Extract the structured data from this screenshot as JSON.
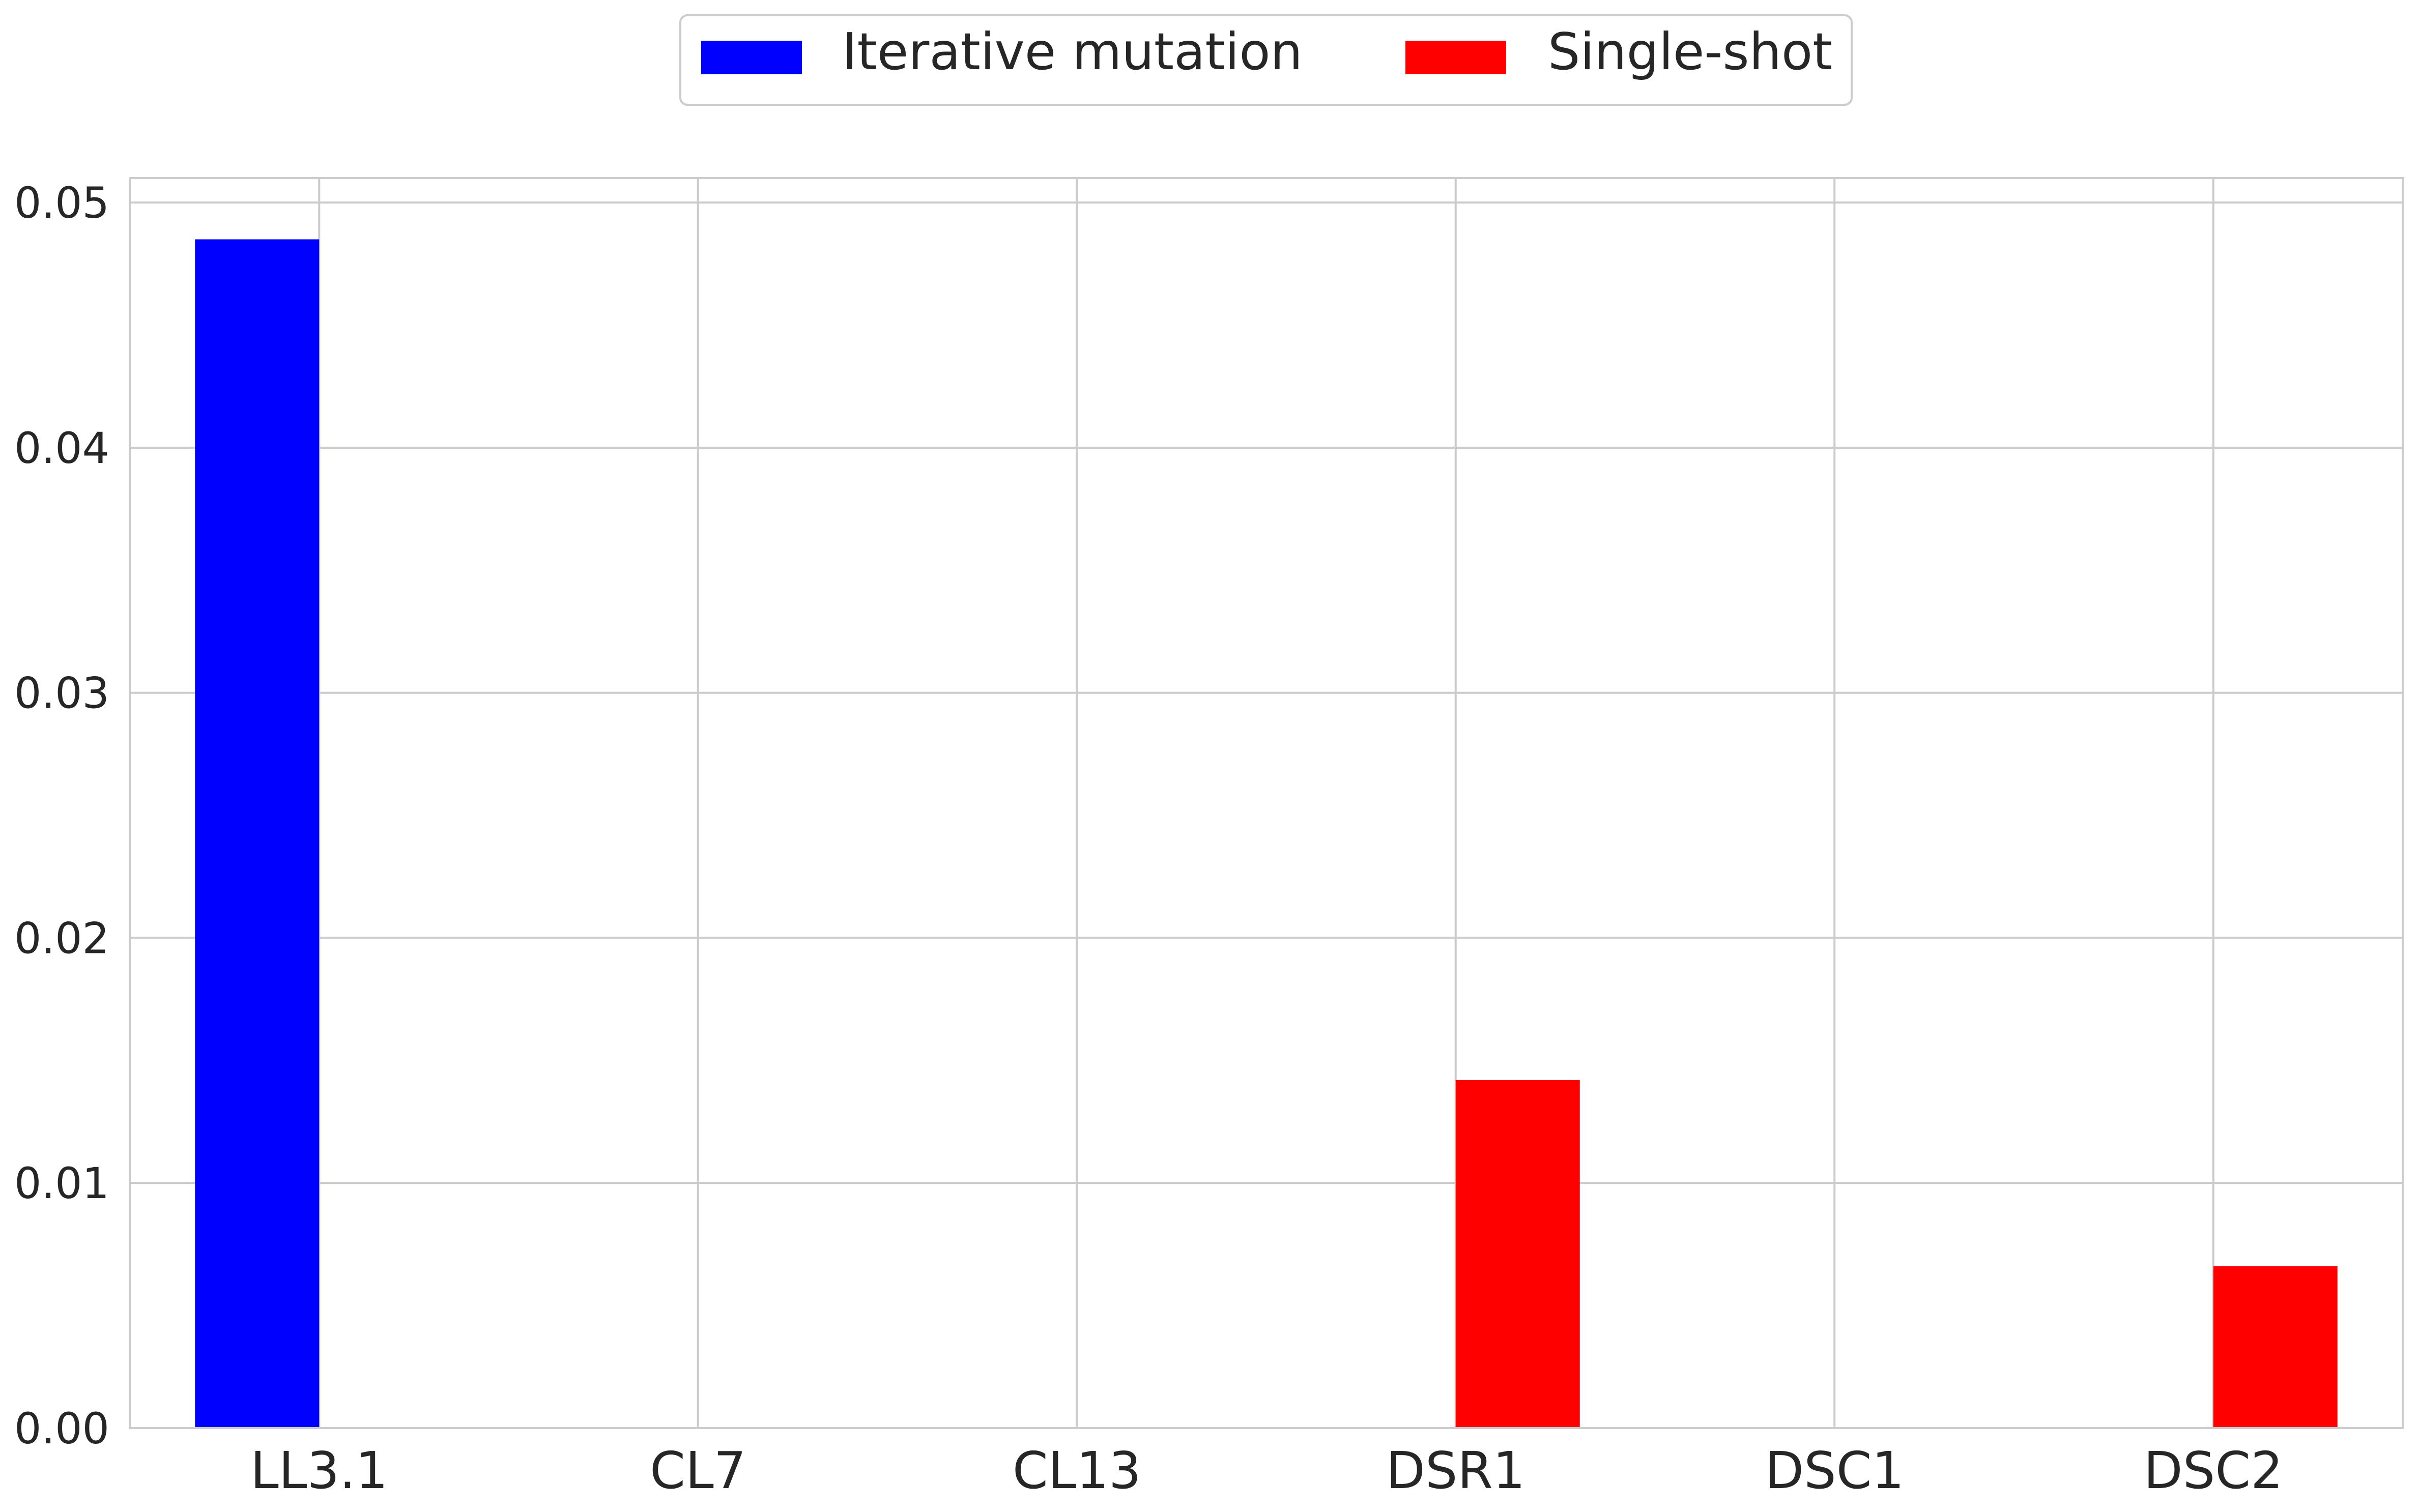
{
  "chart_data": {
    "type": "bar",
    "categories": [
      "LL3.1",
      "CL7",
      "CL13",
      "DSR1",
      "DSC1",
      "DSC2"
    ],
    "series": [
      {
        "name": "Iterative mutation",
        "color": "#0000ff",
        "values": [
          0.0485,
          0,
          0,
          0,
          0,
          0
        ]
      },
      {
        "name": "Single-shot",
        "color": "#ff0000",
        "values": [
          0,
          0,
          0,
          0.0142,
          0,
          0.0066
        ]
      }
    ],
    "ylim": [
      0,
      0.051
    ],
    "yticks": [
      "0.00",
      "0.01",
      "0.02",
      "0.03",
      "0.04",
      "0.05"
    ],
    "grid": true,
    "legend_position": "top-center"
  }
}
